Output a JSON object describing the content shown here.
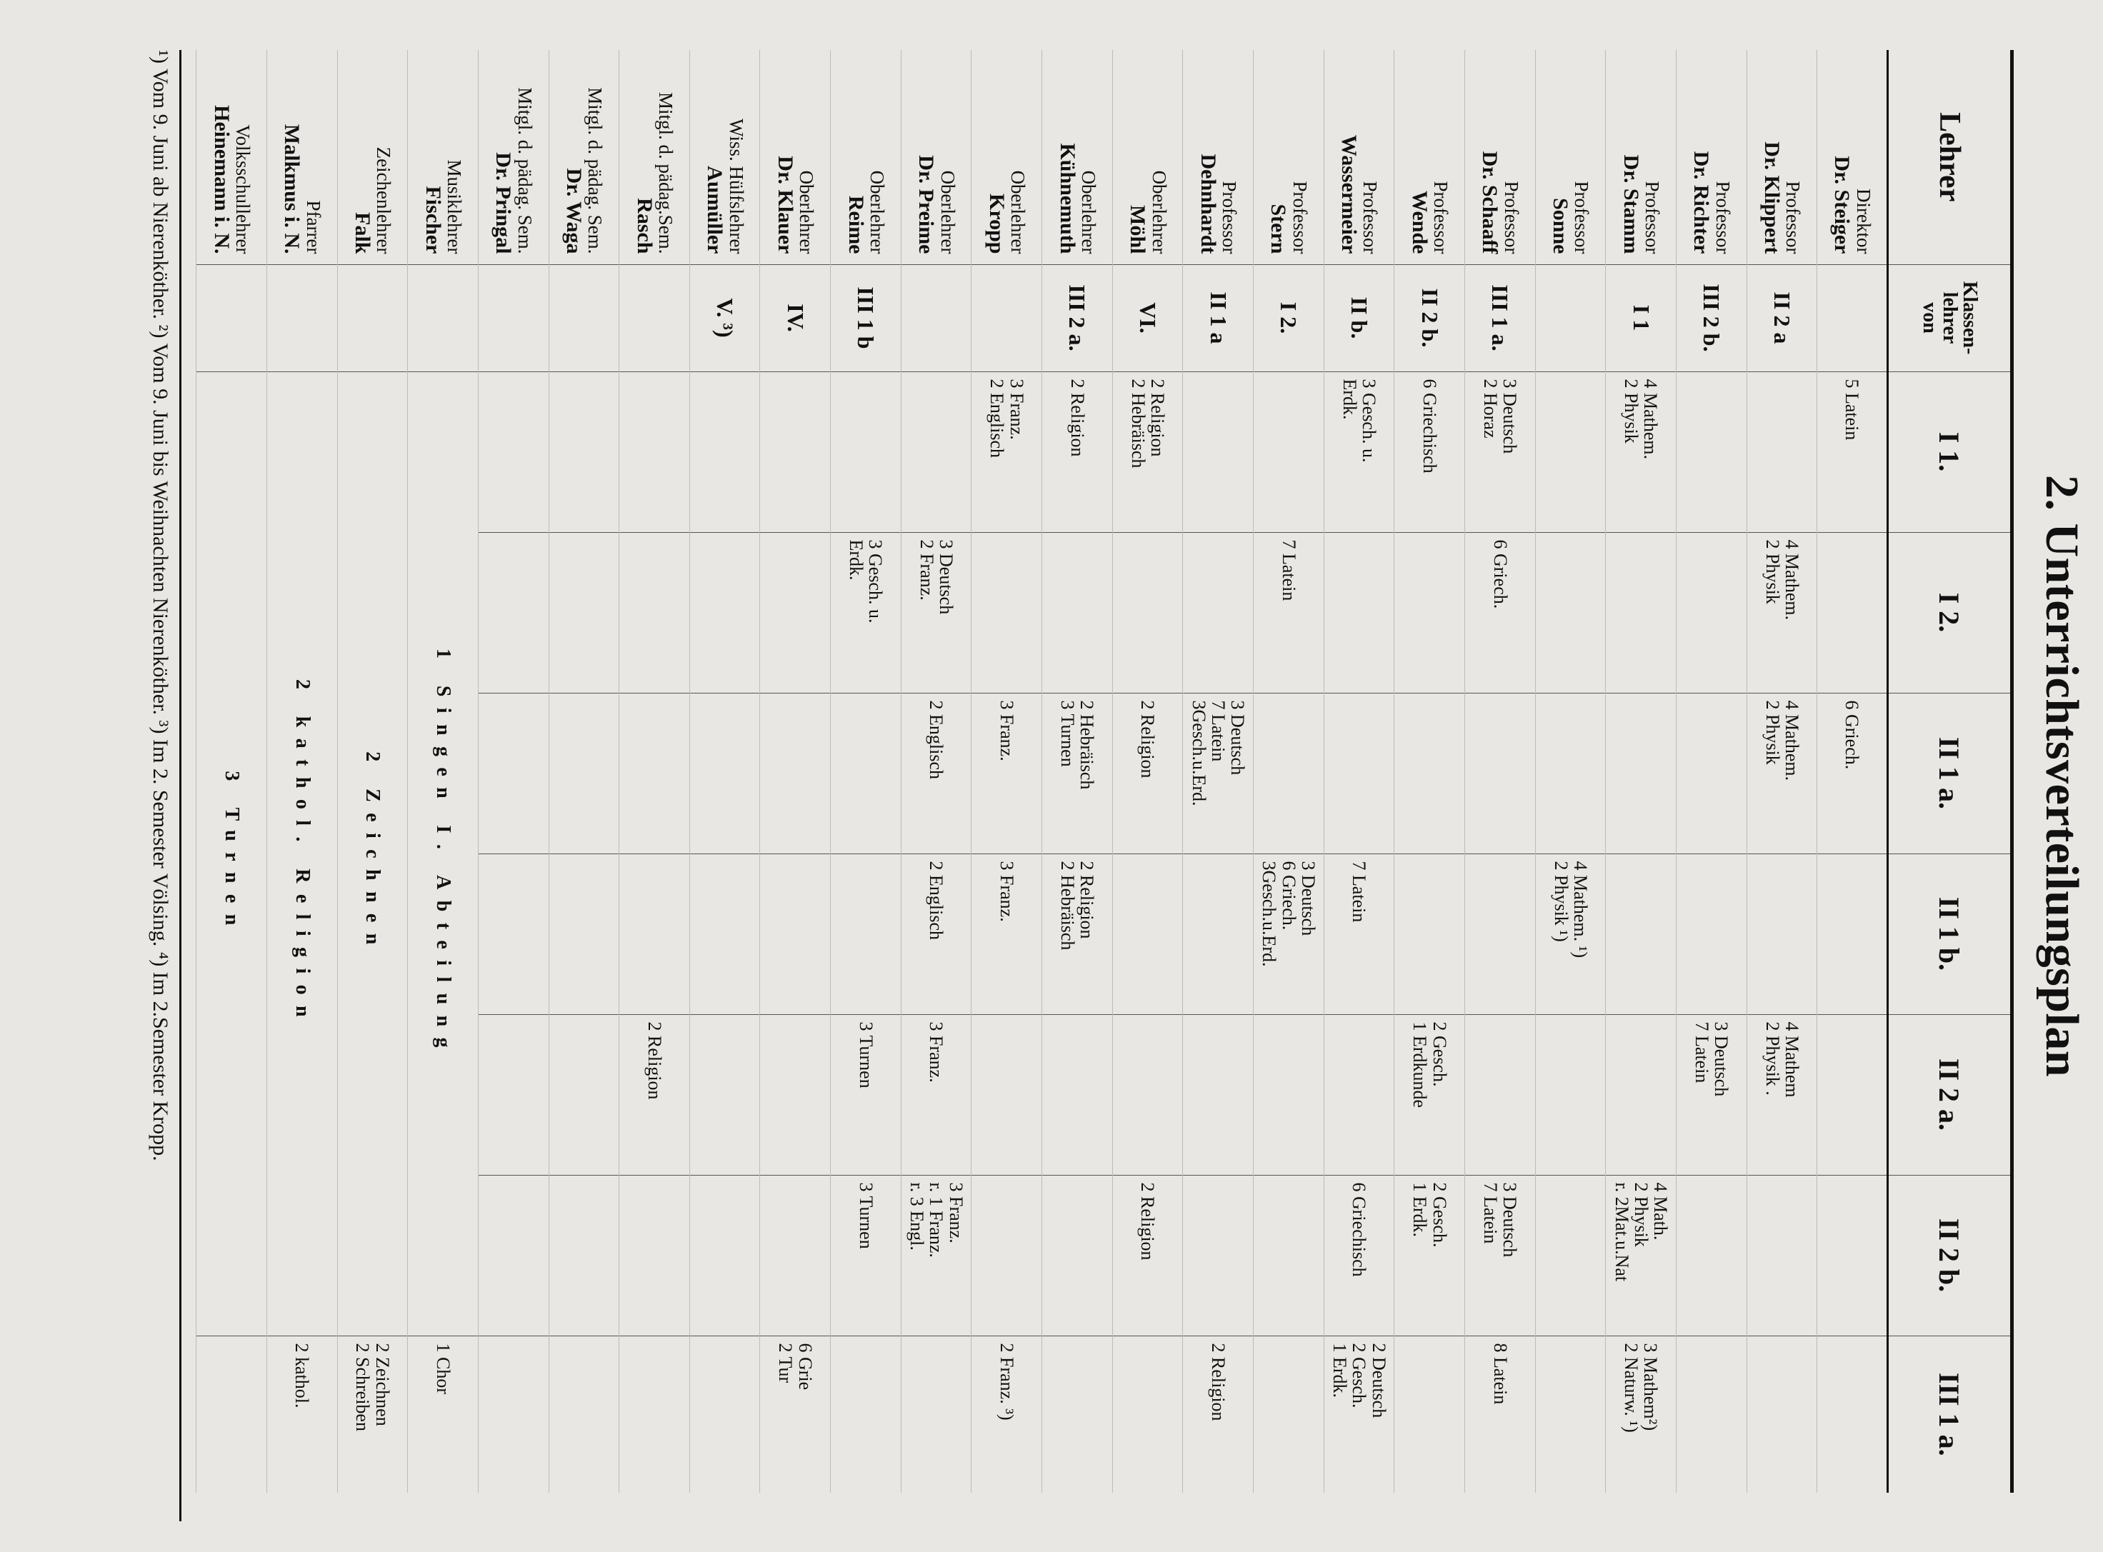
{
  "title": "2. Unterrichtsverteilungsplan",
  "columns": [
    "Lehrer",
    "Klassen-\nlehrer\nvon",
    "I 1.",
    "I 2.",
    "II 1 a.",
    "II 1 b.",
    "II 2 a.",
    "II 2 b.",
    "III 1 a."
  ],
  "rows": [
    {
      "role": "Direktor",
      "name": "Dr. Steiger",
      "klassen": "",
      "cells": [
        [
          "5 Latein"
        ],
        [],
        [
          "6 Griech."
        ],
        [],
        [],
        [],
        []
      ]
    },
    {
      "role": "Professor",
      "name": "Dr. Klippert",
      "klassen": "II 2 a",
      "cells": [
        [],
        [
          "4 Mathem.",
          "2 Physik"
        ],
        [
          "4 Mathem.",
          "2 Physik"
        ],
        [],
        [
          "4 Mathem",
          "2 Physik ."
        ],
        [],
        []
      ]
    },
    {
      "role": "Professor",
      "name": "Dr. Richter",
      "klassen": "III 2 b.",
      "cells": [
        [],
        [],
        [],
        [],
        [
          "3 Deutsch",
          "7 Latein"
        ],
        [],
        []
      ]
    },
    {
      "role": "Professor",
      "name": "Dr. Stamm",
      "klassen": "I 1",
      "cells": [
        [
          "4 Mathem.",
          "2 Physik"
        ],
        [],
        [],
        [],
        [],
        [
          "4 Math.",
          "2 Physik",
          "r. 2Mat.u.Nat"
        ],
        [
          "3 Mathem²)",
          "2 Naturw. ¹)"
        ]
      ]
    },
    {
      "role": "Professor",
      "name": "Sonne",
      "klassen": "",
      "cells": [
        [],
        [],
        [],
        [
          "4 Mathem. ¹)",
          "2 Physik ¹)"
        ],
        [],
        [],
        []
      ]
    },
    {
      "role": "Professor",
      "name": "Dr. Schaaff",
      "klassen": "III 1 a.",
      "cells": [
        [
          "3 Deutsch",
          "2 Horaz"
        ],
        [
          "6 Griech."
        ],
        [],
        [],
        [],
        [
          "3 Deutsch",
          "7 Latein"
        ],
        [
          "8 Latein"
        ]
      ]
    },
    {
      "role": "Professor",
      "name": "Wende",
      "klassen": "II 2 b.",
      "cells": [
        [
          "6 Griechisch"
        ],
        [],
        [],
        [],
        [
          "2 Gesch.",
          "1 Erdkunde"
        ],
        [
          "2 Gesch.",
          "1 Erdk."
        ],
        []
      ]
    },
    {
      "role": "Professor",
      "name": "Wassermeier",
      "klassen": "II b.",
      "cells": [
        [
          "3 Gesch. u.",
          "Erdk."
        ],
        [],
        [],
        [
          "7 Latein"
        ],
        [],
        [
          "6 Griechisch"
        ],
        [
          "2 Deutsch",
          "2 Gesch.",
          "1 Erdk."
        ]
      ]
    },
    {
      "role": "Professor",
      "name": "Stern",
      "klassen": "I 2.",
      "cells": [
        [],
        [
          "7 Latein"
        ],
        [],
        [
          "3 Deutsch",
          "6 Griech.",
          "3Gesch.u.Erd."
        ],
        [],
        [],
        []
      ]
    },
    {
      "role": "Professor",
      "name": "Dehnhardt",
      "klassen": "II 1 a",
      "cells": [
        [],
        [],
        [
          "3 Deutsch",
          "7 Latein",
          "3Gesch.u.Erd."
        ],
        [],
        [],
        [],
        [
          "2 Religion"
        ]
      ]
    },
    {
      "role": "Oberlehrer",
      "name": "Möhl",
      "klassen": "VI.",
      "cells": [
        [
          "2 Religion",
          "2 Hebräisch"
        ],
        [],
        [
          "2 Religion"
        ],
        [],
        [],
        [
          "2 Religion"
        ],
        []
      ]
    },
    {
      "role": "Oberlehrer",
      "name": "Kühnemuth",
      "klassen": "III 2 a.",
      "cells": [
        [
          "2 Religion"
        ],
        [],
        [
          "2 Hebräisch",
          "3 Turnen"
        ],
        [
          "2 Religion",
          "2 Hebräisch"
        ],
        [],
        [],
        []
      ]
    },
    {
      "role": "Oberlehrer",
      "name": "Kropp",
      "klassen": "",
      "cells": [
        [
          "3 Franz.",
          "2 Englisch"
        ],
        [],
        [
          "3 Franz."
        ],
        [
          "3 Franz."
        ],
        [],
        [],
        [
          "2 Franz. ³)"
        ]
      ]
    },
    {
      "role": "Oberlehrer",
      "name": "Dr. Preime",
      "klassen": "",
      "cells": [
        [],
        [
          "3 Deutsch",
          "2 Franz."
        ],
        [
          "2 Englisch"
        ],
        [
          "2 Englisch"
        ],
        [
          "3 Franz."
        ],
        [
          "3 Franz.",
          "r. 1 Franz.",
          "r. 3 Engl."
        ],
        []
      ]
    },
    {
      "role": "Oberlehrer",
      "name": "Reime",
      "klassen": "III 1 b",
      "cells": [
        [],
        [
          "3 Gesch. u.",
          "Erdk."
        ],
        [],
        [],
        [
          "3 Turnen"
        ],
        [
          "3 Turnen"
        ],
        []
      ]
    },
    {
      "role": "Oberlehrer",
      "name": "Dr. Klauer",
      "klassen": "IV.",
      "cells": [
        [],
        [],
        [],
        [],
        [],
        [],
        [
          "6 Grie",
          "2 Tur"
        ]
      ]
    },
    {
      "role": "Wiss. Hülfslehrer",
      "name": "Aumüller",
      "klassen": "V. ³)",
      "cells": [
        [],
        [],
        [],
        [],
        [],
        [],
        []
      ]
    },
    {
      "role": "Mitgl. d. pädag.Sem.",
      "name": "Rasch",
      "klassen": "",
      "cells": [
        [],
        [],
        [],
        [],
        [
          "2 Religion"
        ],
        [],
        []
      ]
    },
    {
      "role": "Mitgl. d. pädag. Sem.",
      "name": "Dr. Waga",
      "klassen": "",
      "cells": [
        [],
        [],
        [],
        [],
        [],
        [],
        []
      ]
    },
    {
      "role": "Mitgl. d. pädag. Sem.",
      "name": "Dr. Pringal",
      "klassen": "",
      "cells": [
        [],
        [],
        [],
        [],
        [],
        [],
        []
      ]
    },
    {
      "role": "Musiklehrer",
      "name": "Fischer",
      "klassen": "",
      "span": "1 Singen I. Abteilung",
      "tail": "1 Chor"
    },
    {
      "role": "Zeichenlehrer",
      "name": "Falk",
      "klassen": "",
      "span": "2 Zeichnen",
      "tail": "2 Zeichnen\n2 Schreiben"
    },
    {
      "role": "Pfarrer",
      "name": "Malkmus i. N.",
      "klassen": "",
      "span": "2 kathol. Religion",
      "tail": "2 kathol."
    },
    {
      "role": "Volksschullehrer",
      "name": "Heinemann i. N.",
      "klassen": "",
      "span": "3 Turnen",
      "tail": ""
    }
  ],
  "footnote": "¹) Vom 9. Juni ab Nierenköther. ²) Vom 9. Juni bis Weihnachten Nierenköther. ³) Im 2. Semester Völsing. ⁴) Im 2.Semester Kropp."
}
